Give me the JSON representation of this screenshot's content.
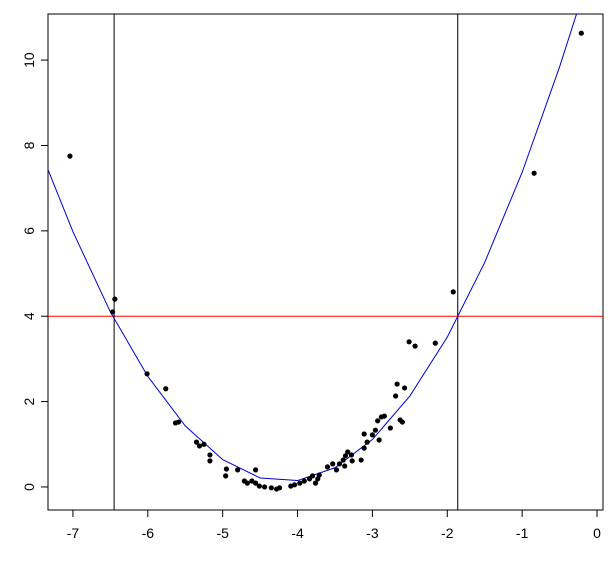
{
  "chart_data": {
    "type": "scatter",
    "color": "#000000",
    "x": [
      -7.04,
      -6.44,
      -6.47,
      -6.01,
      -5.76,
      -5.63,
      -5.59,
      -5.35,
      -5.31,
      -5.25,
      -5.17,
      -5.17,
      -4.95,
      -4.96,
      -4.8,
      -4.71,
      -4.67,
      -4.61,
      -4.56,
      -4.56,
      -4.51,
      -4.44,
      -4.35,
      -4.28,
      -4.24,
      -4.09,
      -4.04,
      -3.97,
      -3.91,
      -3.84,
      -3.8,
      -3.76,
      -3.73,
      -3.71,
      -3.6,
      -3.53,
      -3.48,
      -3.44,
      -3.39,
      -3.36,
      -3.33,
      -3.28,
      -3.37,
      -3.27,
      -3.15,
      -3.11,
      -3.11,
      -3.07,
      -3.0,
      -2.96,
      -2.93,
      -2.91,
      -2.88,
      -2.84,
      -2.76,
      -2.69,
      -2.67,
      -2.63,
      -2.6,
      -2.57,
      -2.51,
      -2.43,
      -2.16,
      -1.92,
      -0.84,
      -0.21
    ],
    "values": [
      7.75,
      4.4,
      4.1,
      2.65,
      2.3,
      1.5,
      1.52,
      1.05,
      0.96,
      1.0,
      0.75,
      0.61,
      0.42,
      0.26,
      0.4,
      0.14,
      0.09,
      0.14,
      0.4,
      0.09,
      0.02,
      0.0,
      -0.02,
      -0.05,
      -0.02,
      0.02,
      0.05,
      0.09,
      0.14,
      0.19,
      0.26,
      0.09,
      0.19,
      0.28,
      0.47,
      0.54,
      0.4,
      0.54,
      0.63,
      0.73,
      0.82,
      0.75,
      0.49,
      0.61,
      0.63,
      0.91,
      1.24,
      1.05,
      1.22,
      1.33,
      1.55,
      1.1,
      1.64,
      1.66,
      1.38,
      2.13,
      2.41,
      1.57,
      1.52,
      2.32,
      3.4,
      3.3,
      3.37,
      4.57,
      7.35,
      10.63
    ],
    "curve": {
      "color": "#0000cc",
      "x": [
        -7.33,
        -7,
        -6.5,
        -6,
        -5.5,
        -5,
        -4.5,
        -4,
        -3.5,
        -3,
        -2.5,
        -2,
        -1.5,
        -1,
        -0.5,
        -0.27
      ],
      "values": [
        7.42,
        5.98,
        4.1,
        2.59,
        1.43,
        0.64,
        0.21,
        0.15,
        0.45,
        1.11,
        2.13,
        3.51,
        5.26,
        7.37,
        9.84,
        11.1
      ]
    },
    "hlines": [
      {
        "value": 4,
        "color": "#ff0000"
      }
    ],
    "vlines": [
      {
        "value": -6.45,
        "color": "#000000"
      },
      {
        "value": -1.86,
        "color": "#000000"
      }
    ],
    "xlim": [
      -7.333,
      0.08
    ],
    "ylim": [
      -0.54,
      11.08
    ],
    "xticks": [
      -7,
      -6,
      -5,
      -4,
      -3,
      -2,
      -1,
      0
    ],
    "yticks": [
      0,
      2,
      4,
      6,
      8,
      10
    ]
  }
}
